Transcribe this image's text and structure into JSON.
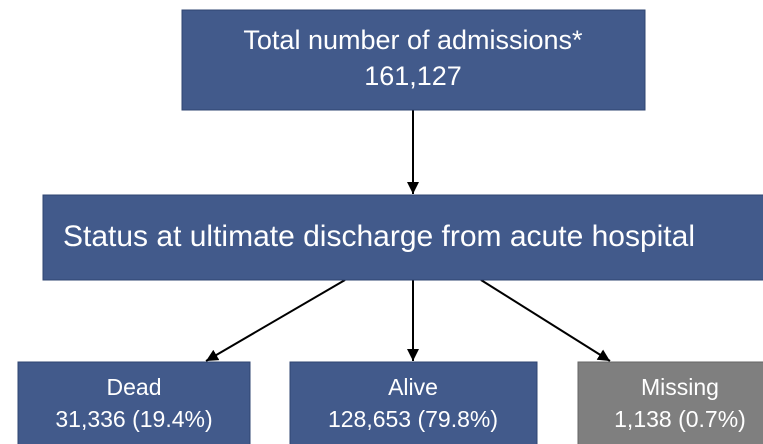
{
  "nodes": [
    {
      "label": "Total number of admissions*",
      "value": "161,127"
    },
    {
      "label": "Status at ultimate discharge from acute hospital"
    },
    {
      "label": "Dead",
      "value": "31,336 (19.4%)"
    },
    {
      "label": "Alive",
      "value": "128,653 (79.8%)"
    },
    {
      "label": "Missing",
      "value": "1,138 (0.7%)"
    }
  ]
}
